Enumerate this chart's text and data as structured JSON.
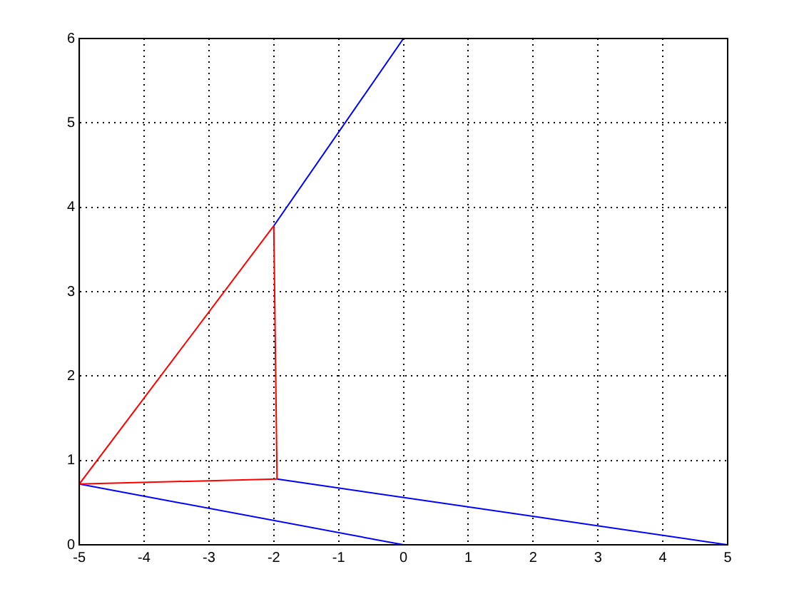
{
  "chart_data": {
    "type": "line",
    "xlim": [
      -5,
      5
    ],
    "ylim": [
      0,
      6
    ],
    "xticks": [
      -5,
      -4,
      -3,
      -2,
      -1,
      0,
      1,
      2,
      3,
      4,
      5
    ],
    "yticks": [
      0,
      1,
      2,
      3,
      4,
      5,
      6
    ],
    "grid": true,
    "line_style": "solid",
    "marker": "none",
    "legend": false,
    "series": [
      {
        "color": "#0000ff",
        "x": [
          0,
          -2
        ],
        "values": [
          6,
          3.78
        ]
      },
      {
        "color": "#ff0000",
        "x": [
          -5,
          -2
        ],
        "values": [
          0.72,
          3.78
        ]
      },
      {
        "color": "#ff0000",
        "x": [
          -5,
          -1.95
        ],
        "values": [
          0.72,
          0.78
        ]
      },
      {
        "color": "#ff0000",
        "x": [
          -1.95,
          -2
        ],
        "values": [
          0.78,
          3.78
        ]
      },
      {
        "color": "#0000ff",
        "x": [
          -1.95,
          5
        ],
        "values": [
          0.78,
          0
        ]
      },
      {
        "color": "#0000ff",
        "x": [
          -5,
          0
        ],
        "values": [
          0.72,
          0
        ]
      }
    ]
  }
}
